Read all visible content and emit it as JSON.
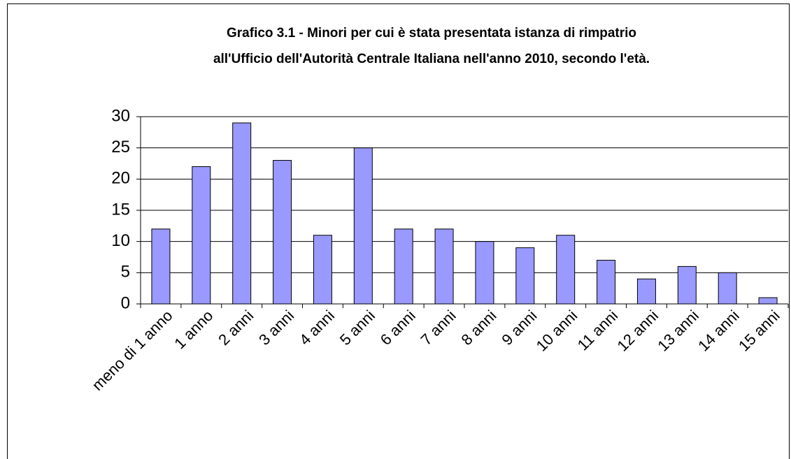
{
  "chart_data": {
    "type": "bar",
    "title": [
      "Grafico 3.1 - Minori per cui  è stata presentata istanza di rimpatrio",
      "all'Ufficio dell'Autorità Centrale Italiana nell'anno 2010, secondo l'età."
    ],
    "categories": [
      "meno  di 1 anno",
      "1 anno",
      "2 anni",
      "3 anni",
      "4 anni",
      "5 anni",
      "6 anni",
      "7 anni",
      "8 anni",
      "9 anni",
      "10 anni",
      "11 anni",
      "12 anni",
      "13 anni",
      "14 anni",
      "15 anni"
    ],
    "values": [
      12,
      22,
      29,
      23,
      11,
      25,
      12,
      12,
      10,
      9,
      11,
      7,
      4,
      6,
      5,
      1
    ],
    "color": "#9999ff",
    "ylim": [
      0,
      30
    ],
    "yticks": [
      0,
      5,
      10,
      15,
      20,
      25,
      30
    ],
    "grid": true
  }
}
